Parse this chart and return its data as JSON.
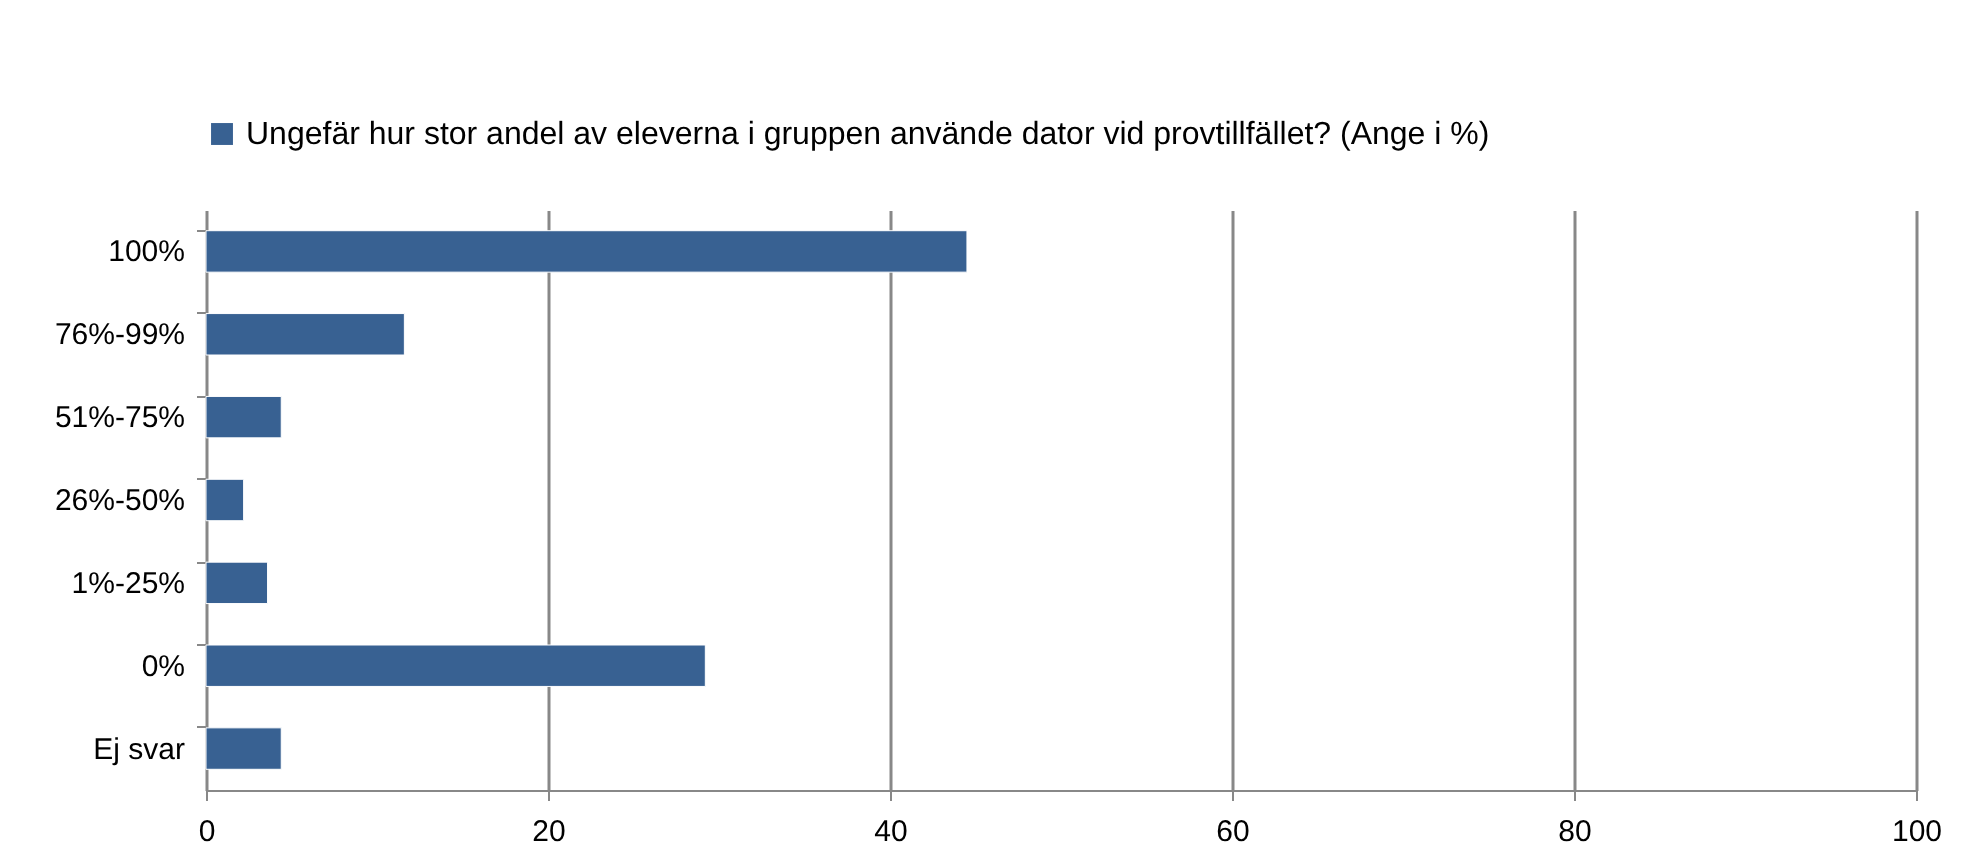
{
  "chart_data": {
    "type": "bar",
    "orientation": "horizontal",
    "categories": [
      "100%",
      "76%-99%",
      "51%-75%",
      "26%-50%",
      "1%-25%",
      "0%",
      "Ej svar"
    ],
    "series": [
      {
        "name": "Ungefär hur stor andel av eleverna i gruppen använde dator vid provtillfället? (Ange i %)",
        "color": "#386192",
        "values": [
          44.5,
          11.6,
          4.4,
          2.2,
          3.6,
          29.2,
          4.4
        ]
      }
    ],
    "xlim": [
      0,
      100
    ],
    "xticks": [
      0,
      20,
      40,
      60,
      80,
      100
    ],
    "grid": "x",
    "legend": "top"
  }
}
